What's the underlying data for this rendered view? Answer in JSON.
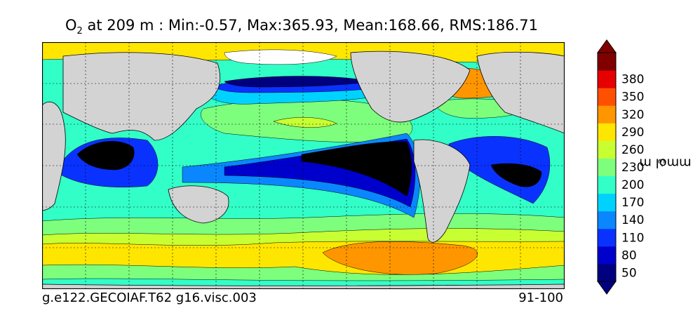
{
  "header": {
    "title_symbol": "O",
    "title_subscript": "2",
    "title_text": " at 209 m : Min:-0.57, Max:365.93, Mean:168.66, RMS:186.71"
  },
  "footer": {
    "case_name": "g.e122.GECOIAF.T62 g16.visc.003",
    "years": "91-100"
  },
  "colorbar": {
    "unit_main": "mmol m",
    "unit_exp": "-3",
    "tick_labels": [
      "50",
      "80",
      "110",
      "140",
      "170",
      "200",
      "230",
      "260",
      "290",
      "320",
      "350",
      "380"
    ],
    "colors": [
      "#000080",
      "#0000cd",
      "#0a32ff",
      "#0a87ff",
      "#00d2ff",
      "#32ffc8",
      "#7dff7d",
      "#c8ff32",
      "#ffe600",
      "#ff9600",
      "#ff5000",
      "#e60000",
      "#800000"
    ]
  },
  "map": {
    "land_color": "#d3d3d3",
    "ice_color": "#ffffff",
    "background_color": "#32ffc8"
  }
}
